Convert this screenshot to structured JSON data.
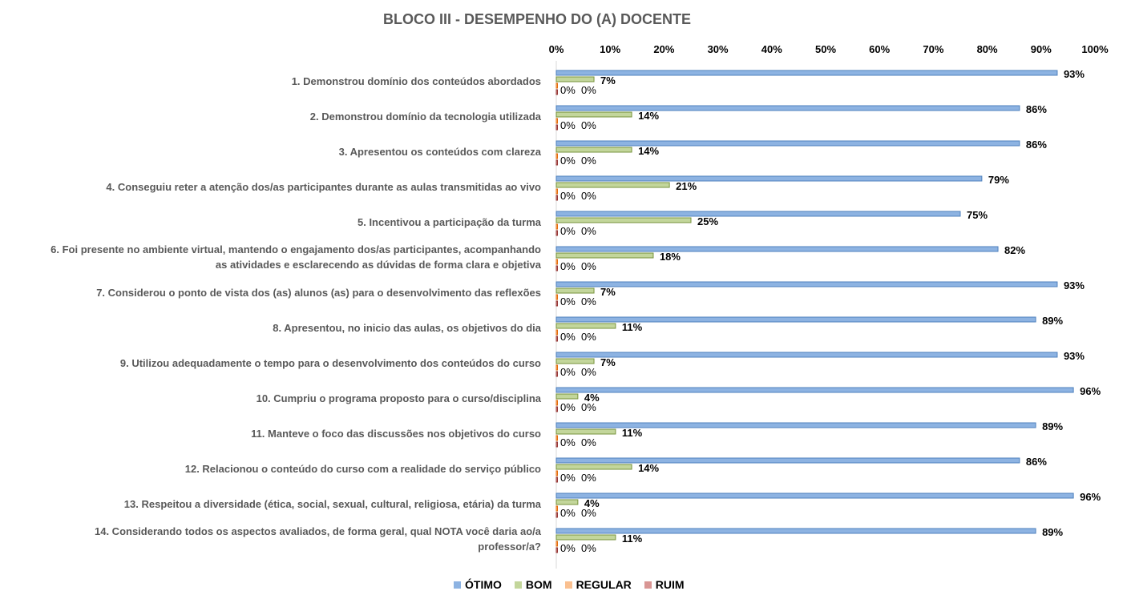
{
  "chart_data": {
    "type": "bar",
    "orientation": "horizontal",
    "title": "BLOCO III - DESEMPENHO DO (A) DOCENTE",
    "xlim": [
      0,
      100
    ],
    "x_ticks": [
      "0%",
      "10%",
      "20%",
      "30%",
      "40%",
      "50%",
      "60%",
      "70%",
      "80%",
      "90%",
      "100%"
    ],
    "categories": [
      "1. Demonstrou domínio dos conteúdos abordados",
      "2. Demonstrou domínio da tecnologia utilizada",
      "3. Apresentou os conteúdos com clareza",
      "4. Conseguiu reter a atenção dos/as participantes durante as aulas transmitidas ao vivo",
      "5. Incentivou a participação da turma",
      "6. Foi presente no ambiente virtual, mantendo o engajamento dos/as participantes, acompanhando\nas atividades e esclarecendo as dúvidas de forma clara e objetiva",
      "7. Considerou o ponto de vista dos (as) alunos (as) para o desenvolvimento das reflexões",
      "8. Apresentou, no inicio das aulas, os objetivos do dia",
      "9. Utilizou adequadamente o tempo para o desenvolvimento dos conteúdos do curso",
      "10. Cumpriu o programa proposto para o curso/disciplina",
      "11. Manteve o foco das discussões nos objetivos do curso",
      "12. Relacionou o conteúdo do curso com a realidade do serviço público",
      "13. Respeitou a diversidade (ética, social, sexual, cultural, religiosa, etária) da turma",
      "14. Considerando todos os aspectos avaliados, de forma geral, qual NOTA você daria ao/a\nprofessor/a?"
    ],
    "series": [
      {
        "name": "ÓTIMO",
        "color": "#8DB3E2",
        "stroke": "#4F81BD",
        "values": [
          93,
          86,
          86,
          79,
          75,
          82,
          93,
          89,
          93,
          96,
          89,
          86,
          96,
          89
        ]
      },
      {
        "name": "BOM",
        "color": "#C3D69B",
        "stroke": "#77933C",
        "values": [
          7,
          14,
          14,
          21,
          25,
          18,
          7,
          11,
          7,
          4,
          11,
          14,
          4,
          11
        ]
      },
      {
        "name": "REGULAR",
        "color": "#FAC090",
        "stroke": "#E46C0A",
        "values": [
          0,
          0,
          0,
          0,
          0,
          0,
          0,
          0,
          0,
          0,
          0,
          0,
          0,
          0
        ]
      },
      {
        "name": "RUIM",
        "color": "#D99694",
        "stroke": "#953735",
        "values": [
          0,
          0,
          0,
          0,
          0,
          0,
          0,
          0,
          0,
          0,
          0,
          0,
          0,
          0
        ]
      }
    ],
    "value_suffix": "%",
    "legend_position": "bottom"
  }
}
